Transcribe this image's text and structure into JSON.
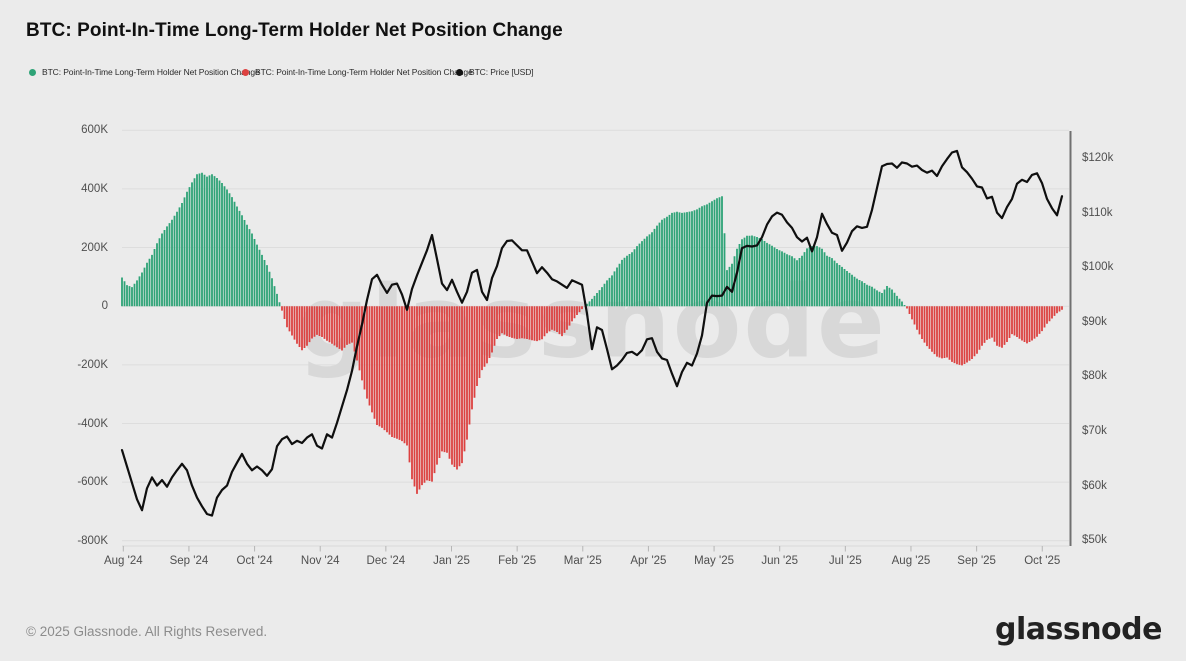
{
  "title": "BTC: Point-In-Time Long-Term Holder Net Position Change",
  "legend": {
    "items": [
      {
        "label": "BTC: Point-In-Time Long-Term Holder Net Position Change",
        "color": "#2ea377",
        "marker": "dot"
      },
      {
        "label": "BTC: Point-In-Time Long-Term Holder Net Position Change",
        "color": "#dd4140",
        "marker": "dot"
      },
      {
        "label": "BTC: Price [USD]",
        "color": "#141414",
        "marker": "dot"
      }
    ]
  },
  "footer": {
    "copyright": "© 2025 Glassnode. All Rights Reserved.",
    "logo_text": "glassnode"
  },
  "watermark": "glassnode",
  "colors": {
    "background": "#ebebeb",
    "grid": "#dddddd",
    "watermark": "#d8d8d8",
    "bar_positive": "#2ea377",
    "bar_negative": "#dc4140",
    "price_line": "#0f0f0f",
    "right_axis_line": "#707070",
    "tick_text": "#4f4f4f",
    "month_tick": "#b5b5b5",
    "baseline": "#d9d9d9"
  },
  "chart_data": {
    "type": "combo",
    "title": "BTC: Point-In-Time Long-Term Holder Net Position Change",
    "grid": true,
    "legend_position": "top-left",
    "x_month_labels": [
      "Aug '24",
      "Sep '24",
      "Oct '24",
      "Nov '24",
      "Dec '24",
      "Jan '25",
      "Feb '25",
      "Mar '25",
      "Apr '25",
      "May '25",
      "Jun '25",
      "Jul '25",
      "Aug '25",
      "Sep '25",
      "Oct '25"
    ],
    "left_axis": {
      "ticks": [
        {
          "label": "600K",
          "value": 600
        },
        {
          "label": "400K",
          "value": 400
        },
        {
          "label": "200K",
          "value": 200
        },
        {
          "label": "0",
          "value": 0
        },
        {
          "label": "-200K",
          "value": -200
        },
        {
          "label": "-400K",
          "value": -400
        },
        {
          "label": "-600K",
          "value": -600
        },
        {
          "label": "-800K",
          "value": -800
        }
      ],
      "unit": "BTC (thousands)"
    },
    "right_axis": {
      "ticks": [
        {
          "label": "$120k",
          "value": 120
        },
        {
          "label": "$110k",
          "value": 110
        },
        {
          "label": "$100k",
          "value": 100
        },
        {
          "label": "$90k",
          "value": 90
        },
        {
          "label": "$80k",
          "value": 80
        },
        {
          "label": "$70k",
          "value": 70
        },
        {
          "label": "$60k",
          "value": 60
        },
        {
          "label": "$50k",
          "value": 50
        }
      ],
      "unit": "USD (thousands)"
    },
    "series": [
      {
        "name": "BTC: Point-In-Time Long-Term Holder Net Position Change",
        "type": "bar",
        "axis": "left",
        "unit": "K BTC",
        "color_positive": "#2ea377",
        "color_negative": "#dc4140",
        "values": [
          98,
          72,
          65,
          88,
          115,
          148,
          175,
          215,
          248,
          272,
          295,
          322,
          352,
          390,
          422,
          450,
          455,
          442,
          450,
          437,
          420,
          398,
          372,
          340,
          310,
          278,
          248,
          210,
          175,
          140,
          95,
          42,
          -15,
          -72,
          -100,
          -128,
          -150,
          -135,
          -110,
          -98,
          -105,
          -118,
          -128,
          -140,
          -151,
          -132,
          -124,
          -185,
          -253,
          -315,
          -362,
          -405,
          -415,
          -430,
          -446,
          -452,
          -460,
          -475,
          -590,
          -640,
          -610,
          -594,
          -598,
          -540,
          -495,
          -500,
          -540,
          -557,
          -535,
          -455,
          -352,
          -272,
          -218,
          -195,
          -158,
          -112,
          -92,
          -102,
          -108,
          -112,
          -109,
          -112,
          -116,
          -119,
          -113,
          -92,
          -80,
          -88,
          -102,
          -80,
          -52,
          -30,
          -10,
          8,
          25,
          45,
          65,
          88,
          105,
          132,
          158,
          172,
          184,
          205,
          222,
          238,
          252,
          275,
          295,
          305,
          318,
          322,
          318,
          321,
          324,
          330,
          341,
          347,
          358,
          368,
          375,
          123,
          145,
          196,
          228,
          240,
          241,
          236,
          229,
          216,
          206,
          195,
          187,
          177,
          170,
          157,
          172,
          197,
          205,
          205,
          196,
          172,
          164,
          147,
          134,
          120,
          107,
          94,
          85,
          73,
          66,
          54,
          45,
          69,
          57,
          35,
          16,
          -8,
          -45,
          -80,
          -112,
          -136,
          -155,
          -172,
          -178,
          -175,
          -190,
          -198,
          -202,
          -192,
          -180,
          -162,
          -135,
          -115,
          -107,
          -135,
          -142,
          -122,
          -95,
          -105,
          -117,
          -127,
          -117,
          -104,
          -85,
          -60,
          -42,
          -24,
          -12
        ]
      },
      {
        "name": "BTC: Price [USD]",
        "type": "line",
        "axis": "right",
        "unit": "$k",
        "color": "#0f0f0f",
        "values": [
          66.5,
          63.5,
          60.5,
          57.5,
          55.5,
          59.5,
          61.5,
          60.0,
          61.0,
          59.8,
          61.5,
          62.8,
          64.0,
          62.8,
          60.0,
          57.8,
          56.2,
          54.8,
          54.5,
          57.8,
          59.2,
          60.0,
          62.5,
          64.2,
          65.8,
          64.0,
          62.8,
          63.5,
          62.8,
          61.8,
          63.0,
          67.2,
          68.5,
          69.0,
          67.6,
          68.2,
          67.8,
          68.8,
          69.4,
          67.3,
          66.8,
          69.4,
          68.8,
          71.5,
          74.5,
          77.5,
          81.0,
          85.5,
          89.5,
          94.0,
          97.8,
          98.6,
          96.8,
          95.3,
          96.8,
          97.0,
          95.0,
          92.2,
          96.0,
          98.5,
          100.8,
          103.1,
          105.9,
          101.5,
          97.0,
          95.8,
          97.7,
          95.5,
          93.5,
          95.5,
          99.0,
          99.5,
          95.5,
          94.0,
          98.0,
          100.2,
          103.5,
          104.8,
          104.9,
          104.0,
          103.1,
          103.1,
          101.0,
          98.9,
          100.0,
          99.0,
          97.8,
          97.4,
          96.8,
          96.2,
          97.6,
          97.2,
          96.8,
          91.5,
          85.0,
          89.0,
          88.5,
          85.0,
          81.3,
          82.0,
          83.0,
          84.3,
          84.5,
          83.9,
          84.8,
          86.8,
          87.0,
          84.5,
          83.3,
          83.0,
          80.5,
          78.2,
          80.8,
          82.5,
          82.0,
          84.2,
          87.5,
          93.5,
          94.8,
          94.7,
          94.8,
          96.4,
          95.5,
          99.0,
          103.5,
          103.9,
          103.8,
          104.0,
          105.5,
          107.8,
          109.3,
          110.0,
          109.6,
          108.2,
          107.2,
          105.5,
          104.7,
          105.4,
          102.9,
          105.5,
          109.8,
          107.9,
          106.3,
          105.9,
          103.0,
          104.5,
          106.6,
          107.5,
          107.2,
          107.4,
          110.5,
          114.5,
          118.5,
          118.9,
          119.0,
          118.2,
          119.2,
          119.0,
          118.4,
          118.6,
          117.8,
          117.3,
          117.7,
          116.7,
          118.5,
          119.8,
          121.0,
          121.3,
          118.3,
          117.4,
          116.2,
          114.8,
          114.6,
          112.6,
          112.9,
          110.0,
          109.0,
          111.0,
          112.5,
          115.3,
          116.0,
          115.6,
          116.9,
          117.2,
          115.4,
          112.5,
          110.8,
          109.5,
          113.0
        ]
      }
    ]
  }
}
